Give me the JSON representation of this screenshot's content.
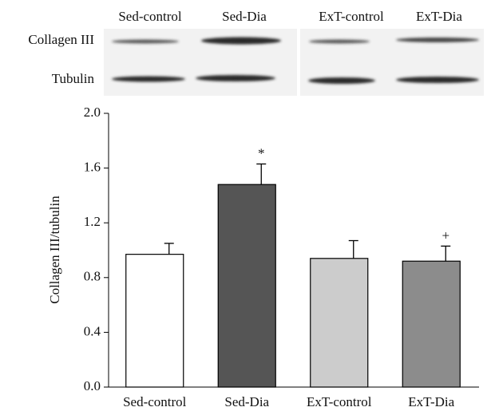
{
  "blot": {
    "lanes": [
      "Sed-control",
      "Sed-Dia",
      "ExT-control",
      "ExT-Dia"
    ],
    "rows": [
      "Collagen III",
      "Tubulin"
    ]
  },
  "chart_data": {
    "type": "bar",
    "y_label": "Collagen III/tubulin",
    "categories": [
      "Sed-control",
      "Sed-Dia",
      "ExT-control",
      "ExT-Dia"
    ],
    "values": [
      0.97,
      1.48,
      0.94,
      0.92
    ],
    "errors": [
      0.08,
      0.15,
      0.13,
      0.11
    ],
    "colors": [
      "#ffffff",
      "#555555",
      "#cccccc",
      "#8c8c8c"
    ],
    "annotations": [
      {
        "text": "*",
        "x": "Sed-Dia"
      },
      {
        "text": "+",
        "x": "ExT-Dia"
      }
    ],
    "ylim": [
      0,
      2
    ],
    "yticks": [
      {
        "value": 0,
        "label": "0.0"
      },
      0.4,
      0.8,
      1.2,
      1.6,
      {
        "value": 2,
        "label": "2.0"
      }
    ],
    "grid": false
  }
}
